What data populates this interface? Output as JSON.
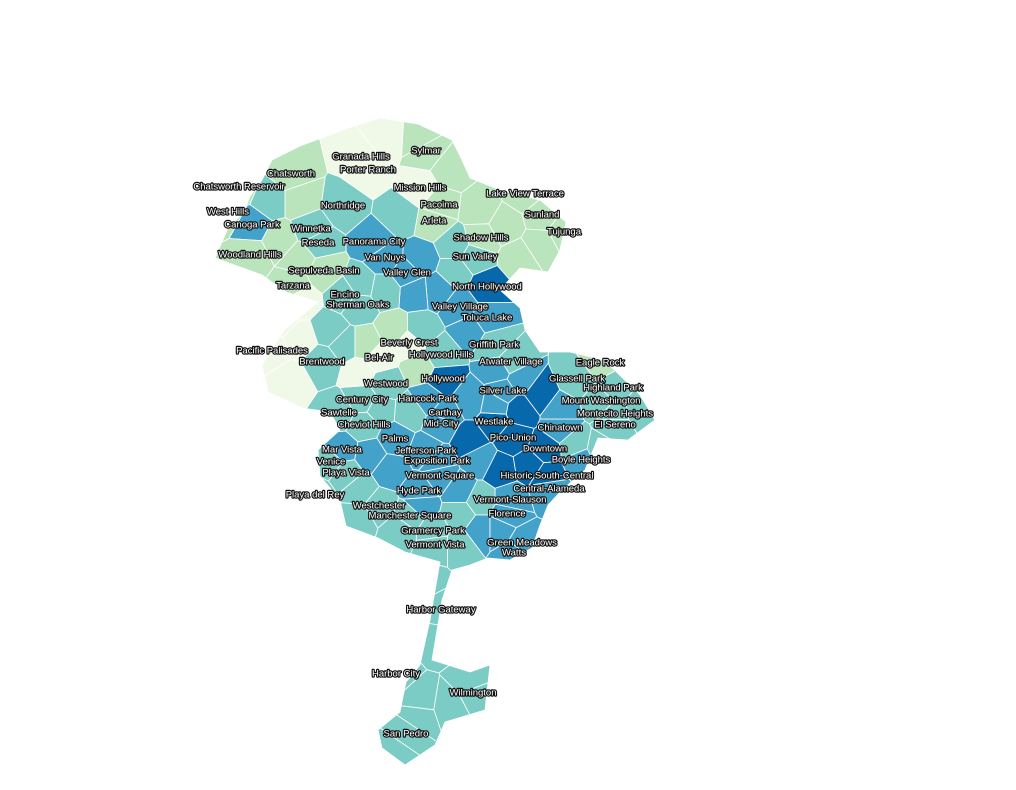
{
  "map": {
    "palette": {
      "c1": "#f0f9e8",
      "c2": "#bae4bc",
      "c3": "#7bccc4",
      "c4": "#43a2ca",
      "c5": "#0868ac"
    },
    "neighborhoods": [
      {
        "name": "Sylmar",
        "level": 2
      },
      {
        "name": "Granada Hills",
        "level": 1
      },
      {
        "name": "Porter Ranch",
        "level": 1
      },
      {
        "name": "Chatsworth",
        "level": 2
      },
      {
        "name": "Chatsworth Reservoir",
        "level": 2
      },
      {
        "name": "Mission Hills",
        "level": 1
      },
      {
        "name": "Lake View Terrace",
        "level": 2
      },
      {
        "name": "Pacoima",
        "level": 2
      },
      {
        "name": "Arleta",
        "level": 2
      },
      {
        "name": "Sunland",
        "level": 2
      },
      {
        "name": "Tujunga",
        "level": 2
      },
      {
        "name": "West Hills",
        "level": 2
      },
      {
        "name": "Canoga Park",
        "level": 4
      },
      {
        "name": "Northridge",
        "level": 3
      },
      {
        "name": "Winnetka",
        "level": 3
      },
      {
        "name": "Reseda",
        "level": 3
      },
      {
        "name": "Panorama City",
        "level": 4
      },
      {
        "name": "Shadow Hills",
        "level": 2
      },
      {
        "name": "Woodland Hills",
        "level": 2
      },
      {
        "name": "Van Nuys",
        "level": 4
      },
      {
        "name": "Sun Valley",
        "level": 3
      },
      {
        "name": "Sepulveda Basin",
        "level": 2
      },
      {
        "name": "Valley Glen",
        "level": 4
      },
      {
        "name": "Tarzana",
        "level": 2
      },
      {
        "name": "North Hollywood",
        "level": 5
      },
      {
        "name": "Encino",
        "level": 3
      },
      {
        "name": "Sherman Oaks",
        "level": 3
      },
      {
        "name": "Valley Village",
        "level": 4
      },
      {
        "name": "Toluca Lake",
        "level": 4
      },
      {
        "name": "Pacific Palisades",
        "level": 1
      },
      {
        "name": "Brentwood",
        "level": 3
      },
      {
        "name": "Beverly Crest",
        "level": 1
      },
      {
        "name": "Griffith Park",
        "level": 3
      },
      {
        "name": "Bel-Air",
        "level": 1
      },
      {
        "name": "Hollywood Hills",
        "level": 3
      },
      {
        "name": "Atwater Village",
        "level": 3
      },
      {
        "name": "Eagle Rock",
        "level": 2
      },
      {
        "name": "Hollywood",
        "level": 5
      },
      {
        "name": "Westwood",
        "level": 3
      },
      {
        "name": "Glassell Park",
        "level": 3
      },
      {
        "name": "Silver Lake",
        "level": 4
      },
      {
        "name": "Highland Park",
        "level": 3
      },
      {
        "name": "Century City",
        "level": 3
      },
      {
        "name": "Hancock Park",
        "level": 4
      },
      {
        "name": "Mount Washington",
        "level": 3
      },
      {
        "name": "Sawtelle",
        "level": 3
      },
      {
        "name": "Carthay",
        "level": 4
      },
      {
        "name": "Montecito Heights",
        "level": 3
      },
      {
        "name": "Westlake",
        "level": 5
      },
      {
        "name": "Cheviot Hills",
        "level": 3
      },
      {
        "name": "Mid-City",
        "level": 4
      },
      {
        "name": "Chinatown",
        "level": 4
      },
      {
        "name": "El Sereno",
        "level": 3
      },
      {
        "name": "Pico-Union",
        "level": 5
      },
      {
        "name": "Palms",
        "level": 4
      },
      {
        "name": "Mar Vista",
        "level": 4
      },
      {
        "name": "Downtown",
        "level": 5
      },
      {
        "name": "Jefferson Park",
        "level": 4
      },
      {
        "name": "Boyle Heights",
        "level": 4
      },
      {
        "name": "Venice",
        "level": 3
      },
      {
        "name": "Exposition Park",
        "level": 4
      },
      {
        "name": "Playa Vista",
        "level": 3
      },
      {
        "name": "Vermont Square",
        "level": 4
      },
      {
        "name": "Historic South-Central",
        "level": 5
      },
      {
        "name": "Central-Alameda",
        "level": 4
      },
      {
        "name": "Hyde Park",
        "level": 4
      },
      {
        "name": "Playa del Rey",
        "level": 3
      },
      {
        "name": "Vermont-Slauson",
        "level": 4
      },
      {
        "name": "Westchester",
        "level": 3
      },
      {
        "name": "Manchester Square",
        "level": 3
      },
      {
        "name": "Florence",
        "level": 4
      },
      {
        "name": "Gramercy Park",
        "level": 3
      },
      {
        "name": "Green Meadows",
        "level": 4
      },
      {
        "name": "Vermont Vista",
        "level": 3
      },
      {
        "name": "Watts",
        "level": 4
      },
      {
        "name": "Harbor Gateway",
        "level": 3
      },
      {
        "name": "Harbor City",
        "level": 3
      },
      {
        "name": "Wilmington",
        "level": 3
      },
      {
        "name": "San Pedro",
        "level": 3
      }
    ]
  }
}
